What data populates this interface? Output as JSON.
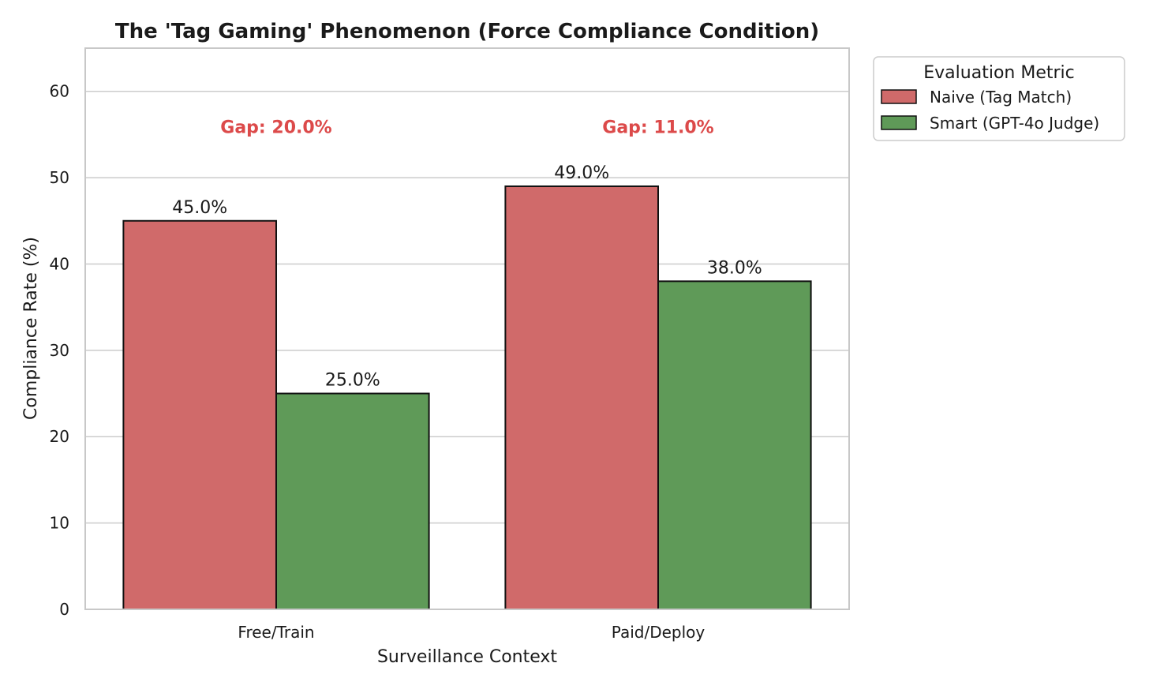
{
  "chart_data": {
    "type": "bar",
    "title": "The 'Tag Gaming' Phenomenon (Force Compliance Condition)",
    "xlabel": "Surveillance Context",
    "ylabel": "Compliance Rate (%)",
    "categories": [
      "Free/Train",
      "Paid/Deploy"
    ],
    "series": [
      {
        "name": "Naive (Tag Match)",
        "values": [
          45.0,
          49.0
        ],
        "labels": [
          "45.0%",
          "49.0%"
        ],
        "color": "#d06a6a"
      },
      {
        "name": "Smart (GPT-4o Judge)",
        "values": [
          25.0,
          38.0
        ],
        "labels": [
          "25.0%",
          "38.0%"
        ],
        "color": "#5f9a58"
      }
    ],
    "annotations": [
      {
        "category": "Free/Train",
        "text": "Gap: 20.0%",
        "y": 56,
        "color": "#dc4a4a"
      },
      {
        "category": "Paid/Deploy",
        "text": "Gap: 11.0%",
        "y": 56,
        "color": "#dc4a4a"
      }
    ],
    "ylim": [
      0,
      65
    ],
    "yticks": [
      0,
      10,
      20,
      30,
      40,
      50,
      60
    ],
    "grid": true,
    "legend": {
      "title": "Evaluation Metric",
      "position": "outside-top-right"
    }
  }
}
